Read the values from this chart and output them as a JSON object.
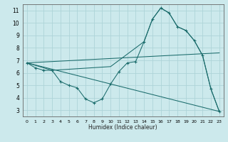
{
  "xlabel": "Humidex (Indice chaleur)",
  "xlim": [
    -0.5,
    23.5
  ],
  "ylim": [
    2.5,
    11.5
  ],
  "xticks": [
    0,
    1,
    2,
    3,
    4,
    5,
    6,
    7,
    8,
    9,
    10,
    11,
    12,
    13,
    14,
    15,
    16,
    17,
    18,
    19,
    20,
    21,
    22,
    23
  ],
  "yticks": [
    3,
    4,
    5,
    6,
    7,
    8,
    9,
    10,
    11
  ],
  "bg_color": "#cce9ec",
  "grid_color": "#b0d8dc",
  "line_color": "#1a6b6b",
  "line1": {
    "x": [
      0,
      1,
      2,
      3,
      4,
      5,
      6,
      7,
      8,
      9,
      10,
      11,
      12,
      13,
      14,
      15,
      16,
      17,
      18,
      19,
      20,
      21,
      22,
      23
    ],
    "y": [
      6.8,
      6.4,
      6.2,
      6.2,
      5.3,
      5.0,
      4.8,
      3.9,
      3.6,
      3.9,
      5.1,
      6.1,
      6.8,
      6.9,
      8.5,
      10.3,
      11.2,
      10.8,
      9.7,
      9.4,
      8.6,
      7.4,
      4.7,
      2.9
    ]
  },
  "line2": {
    "x": [
      0,
      3,
      10,
      14,
      15,
      16,
      17,
      18,
      19,
      20,
      21,
      22,
      23
    ],
    "y": [
      6.8,
      6.2,
      6.5,
      8.5,
      10.3,
      11.2,
      10.8,
      9.7,
      9.4,
      8.6,
      7.4,
      4.7,
      2.9
    ]
  },
  "line3": {
    "x": [
      0,
      23
    ],
    "y": [
      6.8,
      7.6
    ]
  },
  "line4": {
    "x": [
      0,
      23
    ],
    "y": [
      6.8,
      2.9
    ]
  }
}
